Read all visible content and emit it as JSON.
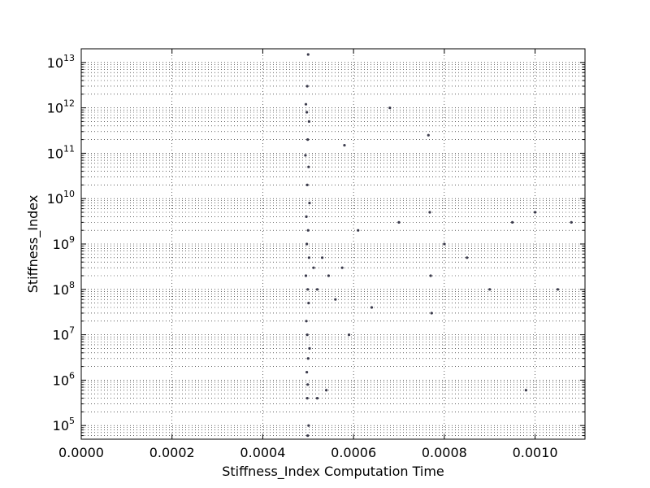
{
  "chart_data": {
    "type": "scatter",
    "xlabel": "Stiffness_Index Computation Time",
    "ylabel": "Stiffness_Index",
    "xlim": [
      0.0,
      0.00111
    ],
    "ylim": [
      50000,
      20000000000000
    ],
    "yscale": "log",
    "grid": true,
    "x_ticks": [
      {
        "value": 0.0,
        "label": "0.0000"
      },
      {
        "value": 0.0002,
        "label": "0.0002"
      },
      {
        "value": 0.0004,
        "label": "0.0004"
      },
      {
        "value": 0.0006,
        "label": "0.0006"
      },
      {
        "value": 0.0008,
        "label": "0.0008"
      },
      {
        "value": 0.001,
        "label": "0.0010"
      }
    ],
    "y_ticks": [
      {
        "exponent": 5,
        "base": "10",
        "sup": "5"
      },
      {
        "exponent": 6,
        "base": "10",
        "sup": "6"
      },
      {
        "exponent": 7,
        "base": "10",
        "sup": "7"
      },
      {
        "exponent": 8,
        "base": "10",
        "sup": "8"
      },
      {
        "exponent": 9,
        "base": "10",
        "sup": "9"
      },
      {
        "exponent": 10,
        "base": "10",
        "sup": "10"
      },
      {
        "exponent": 11,
        "base": "10",
        "sup": "11"
      },
      {
        "exponent": 12,
        "base": "10",
        "sup": "12"
      },
      {
        "exponent": 13,
        "base": "10",
        "sup": "13"
      }
    ],
    "marker_color": "#1a1a2e",
    "series": [
      {
        "points": [
          [
            0.000495,
            1200000000000.0
          ],
          [
            0.000497,
            800000000000.0
          ],
          [
            0.000502,
            500000000000.0
          ],
          [
            0.000499,
            200000000000.0
          ],
          [
            0.000494,
            90000000000.0
          ],
          [
            0.000501,
            50000000000.0
          ],
          [
            0.000498,
            20000000000.0
          ],
          [
            0.000503,
            8000000000.0
          ],
          [
            0.000496,
            4000000000.0
          ],
          [
            0.0005,
            2000000000.0
          ],
          [
            0.000497,
            1000000000.0
          ],
          [
            0.000502,
            500000000.0
          ],
          [
            0.000495,
            200000000.0
          ],
          [
            0.000499,
            100000000.0
          ],
          [
            0.000501,
            50000000.0
          ],
          [
            0.000496,
            20000000.0
          ],
          [
            0.000498,
            10000000.0
          ],
          [
            0.000503,
            5000000.0
          ],
          [
            0.0005,
            3000000.0
          ],
          [
            0.000497,
            1500000.0
          ],
          [
            0.000499,
            800000.0
          ],
          [
            0.000498,
            400000.0
          ],
          [
            0.000501,
            100000.0
          ],
          [
            0.000499,
            60000.0
          ],
          [
            0.0005,
            15000000000000.0
          ],
          [
            0.000498,
            3000000000000.0
          ],
          [
            0.000512,
            300000000.0
          ],
          [
            0.00052,
            100000000.0
          ],
          [
            0.000531,
            500000000.0
          ],
          [
            0.000545,
            200000000.0
          ],
          [
            0.00056,
            60000000.0
          ],
          [
            0.000575,
            300000000.0
          ],
          [
            0.00059,
            10000000.0
          ],
          [
            0.00061,
            2000000000.0
          ],
          [
            0.00064,
            40000000.0
          ],
          [
            0.00068,
            1000000000000.0
          ],
          [
            0.0007,
            3000000000.0
          ],
          [
            0.000765,
            250000000000.0
          ],
          [
            0.00077,
            200000000.0
          ],
          [
            0.000768,
            5000000000.0
          ],
          [
            0.000772,
            30000000.0
          ],
          [
            0.0008,
            1000000000.0
          ],
          [
            0.00085,
            500000000.0
          ],
          [
            0.0009,
            100000000.0
          ],
          [
            0.00095,
            3000000000.0
          ],
          [
            0.001,
            5000000000.0
          ],
          [
            0.00105,
            100000000.0
          ],
          [
            0.00108,
            3000000000.0
          ],
          [
            0.00098,
            600000.0
          ],
          [
            0.00052,
            400000.0
          ],
          [
            0.00054,
            600000.0
          ],
          [
            0.00058,
            150000000000.0
          ]
        ]
      }
    ]
  }
}
